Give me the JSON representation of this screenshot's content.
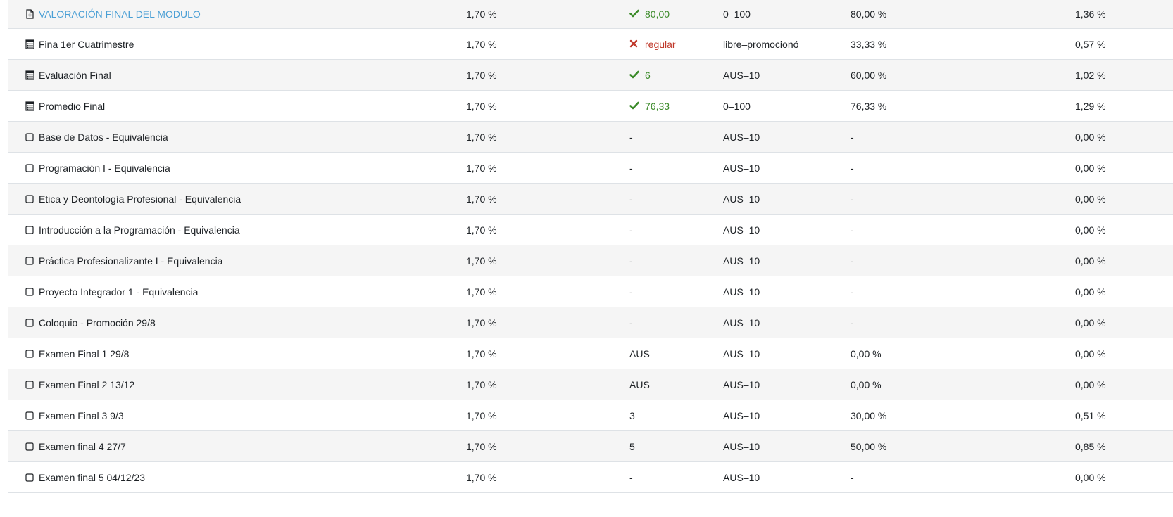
{
  "rows": [
    {
      "kind": "link-doc",
      "name": "VALORACIÓN FINAL DEL MODULO",
      "weight": "1,70 %",
      "grade": "80,00",
      "status": "ok",
      "range": "0–100",
      "pct": "80,00 %",
      "contrib": "1,36 %"
    },
    {
      "kind": "calc",
      "name": "Fina 1er Cuatrimestre",
      "weight": "1,70 %",
      "grade": "regular",
      "status": "bad",
      "range": "libre–promocionó",
      "pct": "33,33 %",
      "contrib": "0,57 %"
    },
    {
      "kind": "calc",
      "name": "Evaluación Final",
      "weight": "1,70 %",
      "grade": "6",
      "status": "ok",
      "range": "AUS–10",
      "pct": "60,00 %",
      "contrib": "1,02 %"
    },
    {
      "kind": "calc",
      "name": "Promedio Final",
      "weight": "1,70 %",
      "grade": "76,33",
      "status": "ok",
      "range": "0–100",
      "pct": "76,33 %",
      "contrib": "1,29 %"
    },
    {
      "kind": "manual",
      "name": "Base de Datos - Equivalencia",
      "weight": "1,70 %",
      "grade": "-",
      "status": "none",
      "range": "AUS–10",
      "pct": "-",
      "contrib": "0,00 %"
    },
    {
      "kind": "manual",
      "name": "Programación I - Equivalencia",
      "weight": "1,70 %",
      "grade": "-",
      "status": "none",
      "range": "AUS–10",
      "pct": "-",
      "contrib": "0,00 %"
    },
    {
      "kind": "manual",
      "name": "Etica y Deontología Profesional - Equivalencia",
      "weight": "1,70 %",
      "grade": "-",
      "status": "none",
      "range": "AUS–10",
      "pct": "-",
      "contrib": "0,00 %"
    },
    {
      "kind": "manual",
      "name": "Introducción a la Programación - Equivalencia",
      "weight": "1,70 %",
      "grade": "-",
      "status": "none",
      "range": "AUS–10",
      "pct": "-",
      "contrib": "0,00 %"
    },
    {
      "kind": "manual",
      "name": "Práctica Profesionalizante I - Equivalencia",
      "weight": "1,70 %",
      "grade": "-",
      "status": "none",
      "range": "AUS–10",
      "pct": "-",
      "contrib": "0,00 %"
    },
    {
      "kind": "manual",
      "name": "Proyecto Integrador 1 - Equivalencia",
      "weight": "1,70 %",
      "grade": "-",
      "status": "none",
      "range": "AUS–10",
      "pct": "-",
      "contrib": "0,00 %"
    },
    {
      "kind": "manual",
      "name": "Coloquio - Promoción 29/8",
      "weight": "1,70 %",
      "grade": "-",
      "status": "none",
      "range": "AUS–10",
      "pct": "-",
      "contrib": "0,00 %"
    },
    {
      "kind": "manual",
      "name": "Examen Final 1 29/8",
      "weight": "1,70 %",
      "grade": "AUS",
      "status": "none",
      "range": "AUS–10",
      "pct": "0,00 %",
      "contrib": "0,00 %"
    },
    {
      "kind": "manual",
      "name": "Examen Final 2 13/12",
      "weight": "1,70 %",
      "grade": "AUS",
      "status": "none",
      "range": "AUS–10",
      "pct": "0,00 %",
      "contrib": "0,00 %"
    },
    {
      "kind": "manual",
      "name": "Examen Final 3 9/3",
      "weight": "1,70 %",
      "grade": "3",
      "status": "none",
      "range": "AUS–10",
      "pct": "30,00 %",
      "contrib": "0,51 %"
    },
    {
      "kind": "manual",
      "name": "Examen final 4 27/7",
      "weight": "1,70 %",
      "grade": "5",
      "status": "none",
      "range": "AUS–10",
      "pct": "50,00 %",
      "contrib": "0,85 %"
    },
    {
      "kind": "manual",
      "name": "Examen final 5 04/12/23",
      "weight": "1,70 %",
      "grade": "-",
      "status": "none",
      "range": "AUS–10",
      "pct": "-",
      "contrib": "0,00 %"
    }
  ],
  "colors": {
    "link": "#4a9fd5",
    "ok": "#3a8a28",
    "bad": "#c0392b",
    "stripe": "#f5f5f5"
  },
  "icons": {
    "link-doc": "document-link-icon",
    "calc": "calculator-icon",
    "manual": "manual-item-icon",
    "ok": "check-icon",
    "bad": "cross-icon"
  }
}
